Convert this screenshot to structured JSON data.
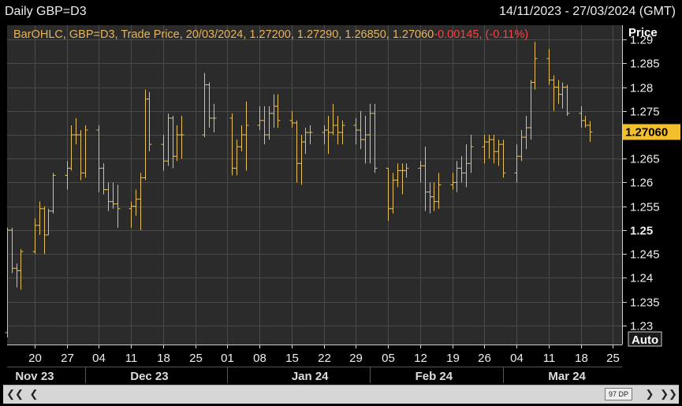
{
  "header": {
    "title": "Daily GBP=D3",
    "range": "14/11/2023 - 27/03/2024 (GMT)"
  },
  "legend": {
    "text": "BarOHLC, GBP=D3, Trade Price, 20/03/2024, 1.27200, 1.27290, 1.26850, 1.27060",
    "change": "-0.00145, (-0.11%)"
  },
  "axis": {
    "title": "Price",
    "auto_label": "Auto",
    "last_price_label": "1.27060"
  },
  "colors": {
    "background": "#000000",
    "plot_background": "#2b2b2b",
    "bars": "#e8c15a",
    "legend_text": "#e8b45a",
    "change_text": "#ff4040",
    "last_price_badge": "#f2c02c"
  },
  "footer": {
    "dp_label": "97 DP",
    "left_double_icon": "double-chevron-left-icon",
    "left_icon": "chevron-left-icon",
    "right_icon": "chevron-right-icon",
    "right_double_icon": "double-chevron-right-icon"
  },
  "chart_data": {
    "type": "ohlc",
    "ylim": [
      1.226,
      1.293
    ],
    "y_ticks": [
      "1.29",
      "1.285",
      "1.28",
      "1.275",
      "1.27",
      "1.265",
      "1.26",
      "1.255",
      "1.25",
      "1.245",
      "1.24",
      "1.235",
      "1.23"
    ],
    "y_tick_values": [
      1.29,
      1.285,
      1.28,
      1.275,
      1.27,
      1.265,
      1.26,
      1.255,
      1.25,
      1.245,
      1.24,
      1.235,
      1.23
    ],
    "y_bold_tick": "1.25",
    "x_day_labels": [
      {
        "label": "20",
        "date": "2023-11-20"
      },
      {
        "label": "27",
        "date": "2023-11-27"
      },
      {
        "label": "04",
        "date": "2023-12-04"
      },
      {
        "label": "11",
        "date": "2023-12-11"
      },
      {
        "label": "18",
        "date": "2023-12-18"
      },
      {
        "label": "25",
        "date": "2023-12-25"
      },
      {
        "label": "01",
        "date": "2024-01-01"
      },
      {
        "label": "08",
        "date": "2024-01-08"
      },
      {
        "label": "15",
        "date": "2024-01-15"
      },
      {
        "label": "22",
        "date": "2024-01-22"
      },
      {
        "label": "29",
        "date": "2024-01-29"
      },
      {
        "label": "05",
        "date": "2024-02-05"
      },
      {
        "label": "12",
        "date": "2024-02-12"
      },
      {
        "label": "19",
        "date": "2024-02-19"
      },
      {
        "label": "26",
        "date": "2024-02-26"
      },
      {
        "label": "04",
        "date": "2024-03-04"
      },
      {
        "label": "11",
        "date": "2024-03-11"
      },
      {
        "label": "18",
        "date": "2024-03-18"
      },
      {
        "label": "25",
        "date": "2024-03-25"
      }
    ],
    "x_month_labels": [
      {
        "label": "Nov 23",
        "date": "2023-11-20"
      },
      {
        "label": "Dec 23",
        "date": "2023-12-15"
      },
      {
        "label": "Jan 24",
        "date": "2024-01-19"
      },
      {
        "label": "Feb 24",
        "date": "2024-02-15"
      },
      {
        "label": "Mar 24",
        "date": "2024-03-15"
      }
    ],
    "x_start": "2023-11-14",
    "x_end": "2024-03-27",
    "bars": [
      {
        "date": "2023-11-14",
        "o": 1.2285,
        "h": 1.2505,
        "l": 1.2275,
        "c": 1.25
      },
      {
        "date": "2023-11-15",
        "o": 1.25,
        "h": 1.2505,
        "l": 1.241,
        "c": 1.242
      },
      {
        "date": "2023-11-16",
        "o": 1.242,
        "h": 1.243,
        "l": 1.238,
        "c": 1.2415
      },
      {
        "date": "2023-11-17",
        "o": 1.2415,
        "h": 1.246,
        "l": 1.2375,
        "c": 1.2455
      },
      {
        "date": "2023-11-20",
        "o": 1.2455,
        "h": 1.2525,
        "l": 1.245,
        "c": 1.251
      },
      {
        "date": "2023-11-21",
        "o": 1.251,
        "h": 1.256,
        "l": 1.249,
        "c": 1.2545
      },
      {
        "date": "2023-11-22",
        "o": 1.2545,
        "h": 1.255,
        "l": 1.245,
        "c": 1.249
      },
      {
        "date": "2023-11-23",
        "o": 1.249,
        "h": 1.2545,
        "l": 1.249,
        "c": 1.254
      },
      {
        "date": "2023-11-24",
        "o": 1.254,
        "h": 1.262,
        "l": 1.2535,
        "c": 1.2615
      },
      {
        "date": "2023-11-27",
        "o": 1.2615,
        "h": 1.2645,
        "l": 1.2585,
        "c": 1.263
      },
      {
        "date": "2023-11-28",
        "o": 1.263,
        "h": 1.272,
        "l": 1.2625,
        "c": 1.27
      },
      {
        "date": "2023-11-29",
        "o": 1.27,
        "h": 1.2735,
        "l": 1.268,
        "c": 1.27
      },
      {
        "date": "2023-11-30",
        "o": 1.27,
        "h": 1.271,
        "l": 1.2605,
        "c": 1.262
      },
      {
        "date": "2023-12-01",
        "o": 1.262,
        "h": 1.272,
        "l": 1.261,
        "c": 1.271
      },
      {
        "date": "2023-12-04",
        "o": 1.271,
        "h": 1.272,
        "l": 1.258,
        "c": 1.263
      },
      {
        "date": "2023-12-05",
        "o": 1.263,
        "h": 1.264,
        "l": 1.2575,
        "c": 1.2585
      },
      {
        "date": "2023-12-06",
        "o": 1.2585,
        "h": 1.26,
        "l": 1.254,
        "c": 1.256
      },
      {
        "date": "2023-12-07",
        "o": 1.256,
        "h": 1.26,
        "l": 1.2545,
        "c": 1.2555
      },
      {
        "date": "2023-12-08",
        "o": 1.2555,
        "h": 1.2595,
        "l": 1.2505,
        "c": 1.2545
      },
      {
        "date": "2023-12-11",
        "o": 1.2545,
        "h": 1.256,
        "l": 1.2505,
        "c": 1.255
      },
      {
        "date": "2023-12-12",
        "o": 1.255,
        "h": 1.2585,
        "l": 1.253,
        "c": 1.2565
      },
      {
        "date": "2023-12-13",
        "o": 1.2565,
        "h": 1.262,
        "l": 1.25,
        "c": 1.261
      },
      {
        "date": "2023-12-14",
        "o": 1.261,
        "h": 1.2795,
        "l": 1.2605,
        "c": 1.2775
      },
      {
        "date": "2023-12-15",
        "o": 1.2775,
        "h": 1.279,
        "l": 1.2665,
        "c": 1.268
      },
      {
        "date": "2023-12-18",
        "o": 1.268,
        "h": 1.27,
        "l": 1.2625,
        "c": 1.2645
      },
      {
        "date": "2023-12-19",
        "o": 1.2645,
        "h": 1.2745,
        "l": 1.2635,
        "c": 1.2735
      },
      {
        "date": "2023-12-20",
        "o": 1.2735,
        "h": 1.274,
        "l": 1.263,
        "c": 1.2655
      },
      {
        "date": "2023-12-21",
        "o": 1.2655,
        "h": 1.272,
        "l": 1.2645,
        "c": 1.27
      },
      {
        "date": "2023-12-22",
        "o": 1.27,
        "h": 1.274,
        "l": 1.265,
        "c": 1.27
      },
      {
        "date": "2023-12-27",
        "o": 1.27,
        "h": 1.283,
        "l": 1.2695,
        "c": 1.2805
      },
      {
        "date": "2023-12-28",
        "o": 1.2805,
        "h": 1.281,
        "l": 1.2715,
        "c": 1.2735
      },
      {
        "date": "2023-12-29",
        "o": 1.2735,
        "h": 1.2765,
        "l": 1.2705,
        "c": 1.2735
      },
      {
        "date": "2024-01-02",
        "o": 1.2735,
        "h": 1.2745,
        "l": 1.2615,
        "c": 1.263
      },
      {
        "date": "2024-01-03",
        "o": 1.263,
        "h": 1.269,
        "l": 1.2615,
        "c": 1.2675
      },
      {
        "date": "2024-01-04",
        "o": 1.2675,
        "h": 1.272,
        "l": 1.2665,
        "c": 1.27
      },
      {
        "date": "2024-01-05",
        "o": 1.27,
        "h": 1.277,
        "l": 1.2625,
        "c": 1.272
      },
      {
        "date": "2024-01-08",
        "o": 1.272,
        "h": 1.276,
        "l": 1.271,
        "c": 1.273
      },
      {
        "date": "2024-01-09",
        "o": 1.273,
        "h": 1.276,
        "l": 1.268,
        "c": 1.27
      },
      {
        "date": "2024-01-10",
        "o": 1.27,
        "h": 1.276,
        "l": 1.269,
        "c": 1.2745
      },
      {
        "date": "2024-01-11",
        "o": 1.2745,
        "h": 1.2785,
        "l": 1.2715,
        "c": 1.276
      },
      {
        "date": "2024-01-12",
        "o": 1.276,
        "h": 1.2785,
        "l": 1.2715,
        "c": 1.273
      },
      {
        "date": "2024-01-15",
        "o": 1.273,
        "h": 1.275,
        "l": 1.2715,
        "c": 1.2725
      },
      {
        "date": "2024-01-16",
        "o": 1.2725,
        "h": 1.273,
        "l": 1.26,
        "c": 1.264
      },
      {
        "date": "2024-01-17",
        "o": 1.264,
        "h": 1.27,
        "l": 1.2595,
        "c": 1.2685
      },
      {
        "date": "2024-01-18",
        "o": 1.2685,
        "h": 1.2715,
        "l": 1.266,
        "c": 1.2705
      },
      {
        "date": "2024-01-19",
        "o": 1.2705,
        "h": 1.272,
        "l": 1.268,
        "c": 1.2705
      },
      {
        "date": "2024-01-22",
        "o": 1.2705,
        "h": 1.272,
        "l": 1.268,
        "c": 1.271
      },
      {
        "date": "2024-01-23",
        "o": 1.271,
        "h": 1.274,
        "l": 1.266,
        "c": 1.2705
      },
      {
        "date": "2024-01-24",
        "o": 1.2705,
        "h": 1.2765,
        "l": 1.27,
        "c": 1.272
      },
      {
        "date": "2024-01-25",
        "o": 1.272,
        "h": 1.274,
        "l": 1.268,
        "c": 1.2705
      },
      {
        "date": "2024-01-26",
        "o": 1.2705,
        "h": 1.273,
        "l": 1.268,
        "c": 1.272
      },
      {
        "date": "2024-01-29",
        "o": 1.272,
        "h": 1.2735,
        "l": 1.268,
        "c": 1.271
      },
      {
        "date": "2024-01-30",
        "o": 1.271,
        "h": 1.275,
        "l": 1.267,
        "c": 1.269
      },
      {
        "date": "2024-01-31",
        "o": 1.269,
        "h": 1.274,
        "l": 1.264,
        "c": 1.27
      },
      {
        "date": "2024-02-01",
        "o": 1.27,
        "h": 1.2765,
        "l": 1.264,
        "c": 1.2745
      },
      {
        "date": "2024-02-02",
        "o": 1.2745,
        "h": 1.2765,
        "l": 1.262,
        "c": 1.263
      },
      {
        "date": "2024-02-05",
        "o": 1.263,
        "h": 1.263,
        "l": 1.252,
        "c": 1.2545
      },
      {
        "date": "2024-02-06",
        "o": 1.2545,
        "h": 1.262,
        "l": 1.2535,
        "c": 1.2605
      },
      {
        "date": "2024-02-07",
        "o": 1.2605,
        "h": 1.264,
        "l": 1.259,
        "c": 1.2625
      },
      {
        "date": "2024-02-08",
        "o": 1.2625,
        "h": 1.264,
        "l": 1.2575,
        "c": 1.2625
      },
      {
        "date": "2024-02-09",
        "o": 1.2625,
        "h": 1.264,
        "l": 1.261,
        "c": 1.263
      },
      {
        "date": "2024-02-12",
        "o": 1.263,
        "h": 1.2645,
        "l": 1.26,
        "c": 1.2635
      },
      {
        "date": "2024-02-13",
        "o": 1.2635,
        "h": 1.2675,
        "l": 1.254,
        "c": 1.258
      },
      {
        "date": "2024-02-14",
        "o": 1.258,
        "h": 1.26,
        "l": 1.2535,
        "c": 1.257
      },
      {
        "date": "2024-02-15",
        "o": 1.257,
        "h": 1.26,
        "l": 1.254,
        "c": 1.256
      },
      {
        "date": "2024-02-16",
        "o": 1.256,
        "h": 1.262,
        "l": 1.2545,
        "c": 1.2595
      },
      {
        "date": "2024-02-19",
        "o": 1.2595,
        "h": 1.262,
        "l": 1.2585,
        "c": 1.26
      },
      {
        "date": "2024-02-20",
        "o": 1.26,
        "h": 1.2645,
        "l": 1.258,
        "c": 1.263
      },
      {
        "date": "2024-02-21",
        "o": 1.263,
        "h": 1.2655,
        "l": 1.26,
        "c": 1.262
      },
      {
        "date": "2024-02-22",
        "o": 1.262,
        "h": 1.268,
        "l": 1.259,
        "c": 1.264
      },
      {
        "date": "2024-02-23",
        "o": 1.264,
        "h": 1.27,
        "l": 1.262,
        "c": 1.2675
      },
      {
        "date": "2024-02-26",
        "o": 1.2675,
        "h": 1.27,
        "l": 1.264,
        "c": 1.2685
      },
      {
        "date": "2024-02-27",
        "o": 1.2685,
        "h": 1.27,
        "l": 1.265,
        "c": 1.269
      },
      {
        "date": "2024-02-28",
        "o": 1.269,
        "h": 1.27,
        "l": 1.264,
        "c": 1.2665
      },
      {
        "date": "2024-02-29",
        "o": 1.2665,
        "h": 1.269,
        "l": 1.2635,
        "c": 1.268
      },
      {
        "date": "2024-03-01",
        "o": 1.268,
        "h": 1.269,
        "l": 1.261,
        "c": 1.262
      },
      {
        "date": "2024-03-04",
        "o": 1.262,
        "h": 1.268,
        "l": 1.26,
        "c": 1.2655
      },
      {
        "date": "2024-03-05",
        "o": 1.2655,
        "h": 1.271,
        "l": 1.2645,
        "c": 1.2695
      },
      {
        "date": "2024-03-06",
        "o": 1.2695,
        "h": 1.274,
        "l": 1.267,
        "c": 1.2715
      },
      {
        "date": "2024-03-07",
        "o": 1.2715,
        "h": 1.2815,
        "l": 1.269,
        "c": 1.281
      },
      {
        "date": "2024-03-08",
        "o": 1.281,
        "h": 1.2895,
        "l": 1.2795,
        "c": 1.286
      },
      {
        "date": "2024-03-11",
        "o": 1.286,
        "h": 1.288,
        "l": 1.2805,
        "c": 1.2815
      },
      {
        "date": "2024-03-12",
        "o": 1.2815,
        "h": 1.2825,
        "l": 1.275,
        "c": 1.28
      },
      {
        "date": "2024-03-13",
        "o": 1.28,
        "h": 1.2815,
        "l": 1.2765,
        "c": 1.2785
      },
      {
        "date": "2024-03-14",
        "o": 1.2785,
        "h": 1.281,
        "l": 1.2755,
        "c": 1.28
      },
      {
        "date": "2024-03-15",
        "o": 1.28,
        "h": 1.2805,
        "l": 1.274,
        "c": 1.2745
      },
      {
        "date": "2024-03-18",
        "o": 1.2745,
        "h": 1.276,
        "l": 1.2715,
        "c": 1.273
      },
      {
        "date": "2024-03-19",
        "o": 1.273,
        "h": 1.274,
        "l": 1.2715,
        "c": 1.272
      },
      {
        "date": "2024-03-20",
        "o": 1.272,
        "h": 1.2729,
        "l": 1.2685,
        "c": 1.2706
      }
    ]
  }
}
